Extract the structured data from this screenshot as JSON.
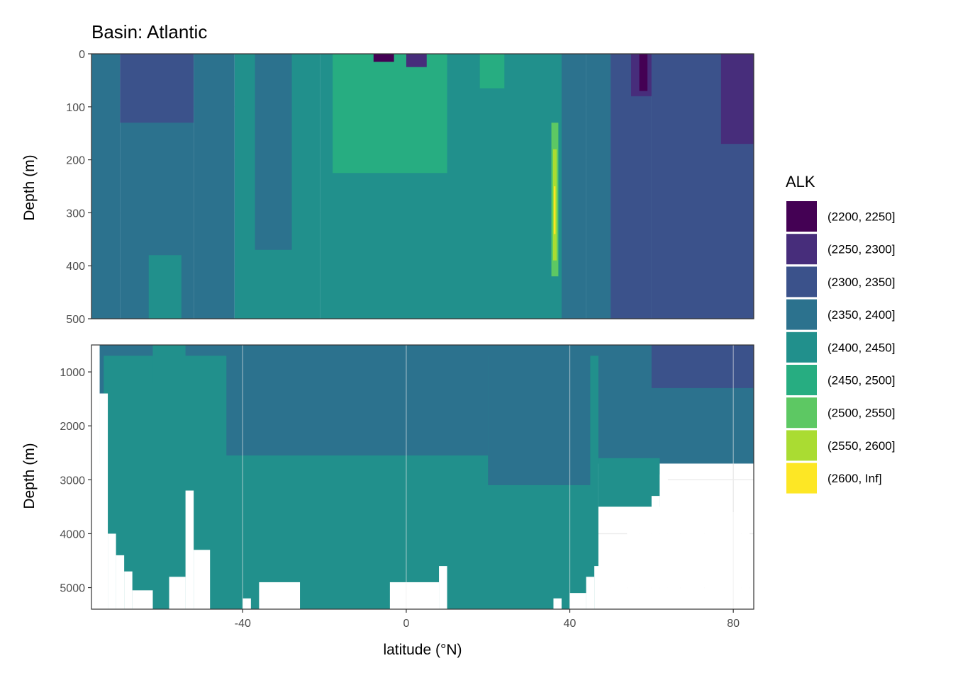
{
  "chart_data": {
    "type": "heatmap",
    "title": "Basin: Atlantic",
    "xlabel": "latitude (°N)",
    "x_ticks": [
      -40,
      0,
      40,
      80
    ],
    "x_tick_labels": [
      "-40",
      "0",
      "40",
      "80"
    ],
    "xlim": [
      -77,
      85
    ],
    "panels": [
      {
        "ylabel": "Depth (m)",
        "ylim": [
          0,
          500
        ],
        "y_ticks": [
          0,
          100,
          200,
          300,
          400,
          500
        ],
        "y_tick_labels": [
          "0",
          "100",
          "200",
          "300",
          "400",
          "500"
        ],
        "bands": [
          {
            "x": [
              -77,
              -70
            ],
            "y": [
              0,
              500
            ],
            "bin": 3
          },
          {
            "x": [
              -70,
              -52
            ],
            "y": [
              0,
              500
            ],
            "bin": 3
          },
          {
            "x": [
              -70,
              -52
            ],
            "y": [
              0,
              130
            ],
            "bin": 2
          },
          {
            "x": [
              -63,
              -55
            ],
            "y": [
              380,
              500
            ],
            "bin": 4
          },
          {
            "x": [
              -52,
              -42
            ],
            "y": [
              0,
              500
            ],
            "bin": 3
          },
          {
            "x": [
              -42,
              -21
            ],
            "y": [
              0,
              500
            ],
            "bin": 4
          },
          {
            "x": [
              -37,
              -28
            ],
            "y": [
              0,
              370
            ],
            "bin": 3
          },
          {
            "x": [
              -21,
              44
            ],
            "y": [
              0,
              500
            ],
            "bin": 4
          },
          {
            "x": [
              -18,
              10
            ],
            "y": [
              0,
              225
            ],
            "bin": 5
          },
          {
            "x": [
              -8,
              -3
            ],
            "y": [
              0,
              15
            ],
            "bin": 0
          },
          {
            "x": [
              0,
              5
            ],
            "y": [
              0,
              25
            ],
            "bin": 1
          },
          {
            "x": [
              18,
              24
            ],
            "y": [
              0,
              65
            ],
            "bin": 5
          },
          {
            "x": [
              35.5,
              37.2
            ],
            "y": [
              130,
              420
            ],
            "bin": 6
          },
          {
            "x": [
              35.9,
              36.8
            ],
            "y": [
              180,
              390
            ],
            "bin": 7
          },
          {
            "x": [
              36.1,
              36.5
            ],
            "y": [
              250,
              340
            ],
            "bin": 8
          },
          {
            "x": [
              38,
              44
            ],
            "y": [
              0,
              500
            ],
            "bin": 3
          },
          {
            "x": [
              44,
              60
            ],
            "y": [
              0,
              500
            ],
            "bin": 3
          },
          {
            "x": [
              50,
              60
            ],
            "y": [
              0,
              500
            ],
            "bin": 2
          },
          {
            "x": [
              55,
              60
            ],
            "y": [
              0,
              80
            ],
            "bin": 1
          },
          {
            "x": [
              57,
              59
            ],
            "y": [
              0,
              70
            ],
            "bin": 0
          },
          {
            "x": [
              60,
              85
            ],
            "y": [
              0,
              500
            ],
            "bin": 2
          },
          {
            "x": [
              77,
              85
            ],
            "y": [
              0,
              170
            ],
            "bin": 1
          }
        ]
      },
      {
        "ylabel": "Depth (m)",
        "ylim": [
          500,
          5400
        ],
        "y_ticks": [
          1000,
          2000,
          3000,
          4000,
          5000
        ],
        "y_tick_labels": [
          "1000",
          "2000",
          "3000",
          "4000",
          "5000"
        ],
        "bands": [
          {
            "x": [
              -75,
              85
            ],
            "y": [
              500,
              2700
            ],
            "bin": 3
          },
          {
            "x": [
              -74,
              47
            ],
            "y": [
              700,
              5400
            ],
            "bin": 4
          },
          {
            "x": [
              -44,
              20
            ],
            "y": [
              500,
              2550
            ],
            "bin": 3
          },
          {
            "x": [
              20,
              45
            ],
            "y": [
              500,
              3100
            ],
            "bin": 3
          },
          {
            "x": [
              -62,
              -54
            ],
            "y": [
              500,
              1200
            ],
            "bin": 4
          },
          {
            "x": [
              47,
              62
            ],
            "y": [
              2600,
              3500
            ],
            "bin": 4
          },
          {
            "x": [
              60,
              85
            ],
            "y": [
              500,
              1300
            ],
            "bin": 2
          }
        ],
        "seafloor": [
          {
            "x": [
              -77,
              -75
            ],
            "y": 700
          },
          {
            "x": [
              -75,
              -73
            ],
            "y": 1400
          },
          {
            "x": [
              -73,
              -71
            ],
            "y": 4000
          },
          {
            "x": [
              -71,
              -69
            ],
            "y": 4400
          },
          {
            "x": [
              -69,
              -67
            ],
            "y": 4700
          },
          {
            "x": [
              -67,
              -62
            ],
            "y": 5050
          },
          {
            "x": [
              -62,
              -58
            ],
            "y": 5400
          },
          {
            "x": [
              -58,
              -54
            ],
            "y": 4800
          },
          {
            "x": [
              -54,
              -52
            ],
            "y": 3200
          },
          {
            "x": [
              -52,
              -48
            ],
            "y": 4300
          },
          {
            "x": [
              -48,
              -40
            ],
            "y": 5400
          },
          {
            "x": [
              -40,
              -38
            ],
            "y": 5200
          },
          {
            "x": [
              -38,
              -36
            ],
            "y": 5400
          },
          {
            "x": [
              -36,
              -26
            ],
            "y": 4900
          },
          {
            "x": [
              -26,
              -4
            ],
            "y": 5400
          },
          {
            "x": [
              -4,
              8
            ],
            "y": 4900
          },
          {
            "x": [
              8,
              10
            ],
            "y": 4600
          },
          {
            "x": [
              10,
              36
            ],
            "y": 5400
          },
          {
            "x": [
              36,
              38
            ],
            "y": 5200
          },
          {
            "x": [
              38,
              40
            ],
            "y": 5400
          },
          {
            "x": [
              40,
              44
            ],
            "y": 5100
          },
          {
            "x": [
              44,
              46
            ],
            "y": 4800
          },
          {
            "x": [
              46,
              50
            ],
            "y": 4600
          },
          {
            "x": [
              50,
              54
            ],
            "y": 4300
          },
          {
            "x": [
              54,
              57
            ],
            "y": 3900
          },
          {
            "x": [
              57,
              60
            ],
            "y": 3600
          },
          {
            "x": [
              60,
              62
            ],
            "y": 3300
          },
          {
            "x": [
              62,
              64
            ],
            "y": 2900
          },
          {
            "x": [
              64,
              67
            ],
            "y": 3300
          },
          {
            "x": [
              67,
              70
            ],
            "y": 3500
          },
          {
            "x": [
              70,
              73
            ],
            "y": 3200
          },
          {
            "x": [
              73,
              82
            ],
            "y": 3600
          },
          {
            "x": [
              82,
              84
            ],
            "y": 3900
          },
          {
            "x": [
              84,
              85
            ],
            "y": 4100
          }
        ]
      }
    ],
    "legend": {
      "title": "ALK",
      "placement": "right",
      "bins": [
        {
          "label": "(2200, 2250]",
          "color": "#440154"
        },
        {
          "label": "(2250, 2300]",
          "color": "#472D7B"
        },
        {
          "label": "(2300, 2350]",
          "color": "#3B528B"
        },
        {
          "label": "(2350, 2400]",
          "color": "#2C728E"
        },
        {
          "label": "(2400, 2450]",
          "color": "#21908C"
        },
        {
          "label": "(2450, 2500]",
          "color": "#27AD81"
        },
        {
          "label": "(2500, 2550]",
          "color": "#5DC863"
        },
        {
          "label": "(2550, 2600]",
          "color": "#AADC32"
        },
        {
          "label": "(2600, Inf]",
          "color": "#FDE725"
        }
      ]
    },
    "grid": true
  }
}
